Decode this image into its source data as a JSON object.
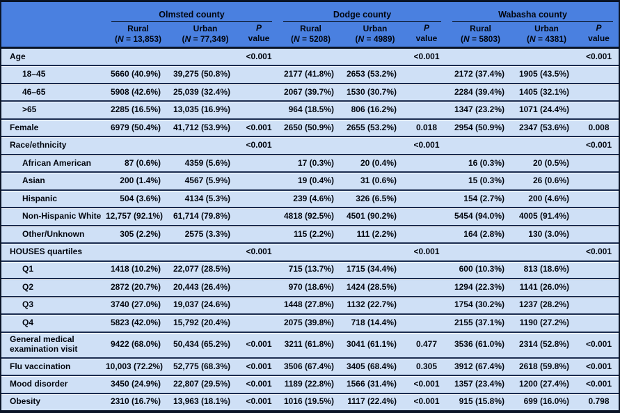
{
  "colors": {
    "header_bg": "#4a80e0",
    "row_bg": "#cfe0f6",
    "divider": "#1b2c50",
    "frame": "#0a1426",
    "text": "#02060f",
    "county_underline": "#01060f"
  },
  "header": {
    "groups": [
      {
        "county": "Olmsted county",
        "rural_label": "Rural",
        "rural_n_html": "(<i>N</i> = 13,853)",
        "urban_label": "Urban",
        "urban_n_html": "(<i>N</i> = 77,349)",
        "p_label_html": "<i>P</i> value"
      },
      {
        "county": "Dodge county",
        "rural_label": "Rural",
        "rural_n_html": "(<i>N</i> = 5208)",
        "urban_label": "Urban",
        "urban_n_html": "(<i>N</i> = 4989)",
        "p_label_html": "<i>P</i> value"
      },
      {
        "county": "Wabasha county",
        "rural_label": "Rural",
        "rural_n_html": "(<i>N</i> = 5803)",
        "urban_label": "Urban",
        "urban_n_html": "(<i>N</i> = 4381)",
        "p_label_html": "<i>P</i> value"
      }
    ]
  },
  "rows": [
    {
      "label": "Age",
      "indent": false,
      "tall": false,
      "cells": [
        "",
        "",
        "<0.001",
        "",
        "",
        "<0.001",
        "",
        "",
        "<0.001"
      ]
    },
    {
      "label": "18–45",
      "indent": true,
      "tall": false,
      "cells": [
        "5660 (40.9%)",
        "39,275 (50.8%)",
        "",
        "2177 (41.8%)",
        "2653 (53.2%)",
        "",
        "2172 (37.4%)",
        "1905 (43.5%)",
        ""
      ]
    },
    {
      "label": "46–65",
      "indent": true,
      "tall": false,
      "cells": [
        "5908 (42.6%)",
        "25,039 (32.4%)",
        "",
        "2067 (39.7%)",
        "1530 (30.7%)",
        "",
        "2284 (39.4%)",
        "1405 (32.1%)",
        ""
      ]
    },
    {
      "label": ">65",
      "indent": true,
      "tall": false,
      "cells": [
        "2285 (16.5%)",
        "13,035 (16.9%)",
        "",
        "964 (18.5%)",
        "806 (16.2%)",
        "",
        "1347 (23.2%)",
        "1071 (24.4%)",
        ""
      ]
    },
    {
      "label": "Female",
      "indent": false,
      "tall": false,
      "cells": [
        "6979 (50.4%)",
        "41,712 (53.9%)",
        "<0.001",
        "2650 (50.9%)",
        "2655 (53.2%)",
        "0.018",
        "2954 (50.9%)",
        "2347 (53.6%)",
        "0.008"
      ]
    },
    {
      "label": "Race/ethnicity",
      "indent": false,
      "tall": false,
      "cells": [
        "",
        "",
        "<0.001",
        "",
        "",
        "<0.001",
        "",
        "",
        "<0.001"
      ]
    },
    {
      "label": "African American",
      "indent": true,
      "tall": false,
      "cells": [
        "87 (0.6%)",
        "4359 (5.6%)",
        "",
        "17 (0.3%)",
        "20 (0.4%)",
        "",
        "16 (0.3%)",
        "20 (0.5%)",
        ""
      ]
    },
    {
      "label": "Asian",
      "indent": true,
      "tall": false,
      "cells": [
        "200 (1.4%)",
        "4567 (5.9%)",
        "",
        "19 (0.4%)",
        "31 (0.6%)",
        "",
        "15 (0.3%)",
        "26 (0.6%)",
        ""
      ]
    },
    {
      "label": "Hispanic",
      "indent": true,
      "tall": false,
      "cells": [
        "504 (3.6%)",
        "4134 (5.3%)",
        "",
        "239 (4.6%)",
        "326 (6.5%)",
        "",
        "154 (2.7%)",
        "200 (4.6%)",
        ""
      ]
    },
    {
      "label": "Non-Hispanic White",
      "indent": true,
      "tall": false,
      "cells": [
        "12,757 (92.1%)",
        "61,714 (79.8%)",
        "",
        "4818 (92.5%)",
        "4501 (90.2%)",
        "",
        "5454 (94.0%)",
        "4005 (91.4%)",
        ""
      ]
    },
    {
      "label": "Other/Unknown",
      "indent": true,
      "tall": false,
      "cells": [
        "305 (2.2%)",
        "2575 (3.3%)",
        "",
        "115 (2.2%)",
        "111 (2.2%)",
        "",
        "164 (2.8%)",
        "130 (3.0%)",
        ""
      ]
    },
    {
      "label": "HOUSES quartiles",
      "indent": false,
      "tall": false,
      "cells": [
        "",
        "",
        "<0.001",
        "",
        "",
        "<0.001",
        "",
        "",
        "<0.001"
      ]
    },
    {
      "label": "Q1",
      "indent": true,
      "tall": false,
      "cells": [
        "1418 (10.2%)",
        "22,077 (28.5%)",
        "",
        "715 (13.7%)",
        "1715 (34.4%)",
        "",
        "600 (10.3%)",
        "813 (18.6%)",
        ""
      ]
    },
    {
      "label": "Q2",
      "indent": true,
      "tall": false,
      "cells": [
        "2872 (20.7%)",
        "20,443 (26.4%)",
        "",
        "970 (18.6%)",
        "1424 (28.5%)",
        "",
        "1294 (22.3%)",
        "1141 (26.0%)",
        ""
      ]
    },
    {
      "label": "Q3",
      "indent": true,
      "tall": false,
      "cells": [
        "3740 (27.0%)",
        "19,037 (24.6%)",
        "",
        "1448 (27.8%)",
        "1132 (22.7%)",
        "",
        "1754 (30.2%)",
        "1237 (28.2%)",
        ""
      ]
    },
    {
      "label": "Q4",
      "indent": true,
      "tall": false,
      "cells": [
        "5823 (42.0%)",
        "15,792 (20.4%)",
        "",
        "2075 (39.8%)",
        "718 (14.4%)",
        "",
        "2155 (37.1%)",
        "1190 (27.2%)",
        ""
      ]
    },
    {
      "label": "General medical examination visit",
      "indent": false,
      "tall": true,
      "cells": [
        "9422 (68.0%)",
        "50,434 (65.2%)",
        "<0.001",
        "3211 (61.8%)",
        "3041 (61.1%)",
        "0.477",
        "3536 (61.0%)",
        "2314 (52.8%)",
        "<0.001"
      ]
    },
    {
      "label": "Flu vaccination",
      "indent": false,
      "tall": false,
      "cells": [
        "10,003 (72.2%)",
        "52,775 (68.3%)",
        "<0.001",
        "3506 (67.4%)",
        "3405 (68.4%)",
        "0.305",
        "3912 (67.4%)",
        "2618 (59.8%)",
        "<0.001"
      ]
    },
    {
      "label": "Mood disorder",
      "indent": false,
      "tall": false,
      "cells": [
        "3450 (24.9%)",
        "22,807 (29.5%)",
        "<0.001",
        "1189 (22.8%)",
        "1566 (31.4%)",
        "<0.001",
        "1357 (23.4%)",
        "1200 (27.4%)",
        "<0.001"
      ]
    },
    {
      "label": "Obesity",
      "indent": false,
      "tall": false,
      "cells": [
        "2310 (16.7%)",
        "13,963 (18.1%)",
        "<0.001",
        "1016 (19.5%)",
        "1117 (22.4%)",
        "<0.001",
        "915 (15.8%)",
        "699 (16.0%)",
        "0.798"
      ]
    }
  ]
}
